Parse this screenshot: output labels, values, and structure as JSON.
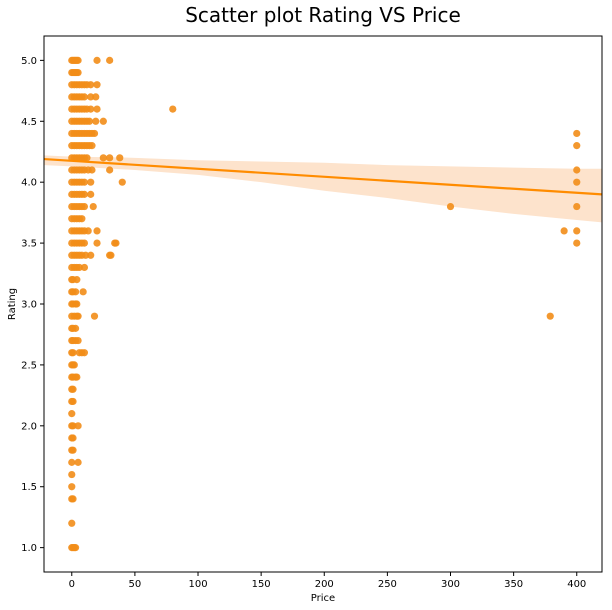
{
  "chart_data": {
    "type": "scatter",
    "title": "Scatter plot Rating VS Price",
    "xlabel": "Price",
    "ylabel": "Rating",
    "xlim": [
      -22,
      420
    ],
    "ylim": [
      0.8,
      5.2
    ],
    "xticks": [
      0,
      50,
      100,
      150,
      200,
      250,
      300,
      350,
      400
    ],
    "yticks": [
      1.0,
      1.5,
      2.0,
      2.5,
      3.0,
      3.5,
      4.0,
      4.5,
      5.0
    ],
    "grid": false,
    "colors": {
      "points": "#f28d18",
      "line": "#ff8c00",
      "band": "#fde3cc"
    },
    "regression": {
      "x": [
        -22,
        420
      ],
      "y": [
        4.19,
        3.9
      ]
    },
    "confidence_band": {
      "x": [
        -22,
        0,
        50,
        100,
        150,
        200,
        250,
        300,
        350,
        400,
        420
      ],
      "lower": [
        4.14,
        4.13,
        4.1,
        4.06,
        4.0,
        3.93,
        3.87,
        3.8,
        3.74,
        3.69,
        3.67
      ],
      "upper": [
        4.22,
        4.21,
        4.2,
        4.18,
        4.17,
        4.16,
        4.14,
        4.13,
        4.12,
        4.11,
        4.11
      ]
    },
    "series": [
      {
        "points": [
          [
            0,
            5.0
          ],
          [
            1,
            5.0
          ],
          [
            2,
            5.0
          ],
          [
            3,
            5.0
          ],
          [
            4,
            5.0
          ],
          [
            5,
            5.0
          ],
          [
            20,
            5.0
          ],
          [
            30,
            5.0
          ],
          [
            0,
            4.9
          ],
          [
            1,
            4.9
          ],
          [
            2,
            4.9
          ],
          [
            3,
            4.9
          ],
          [
            4,
            4.9
          ],
          [
            5,
            4.9
          ],
          [
            0,
            4.8
          ],
          [
            2,
            4.8
          ],
          [
            4,
            4.8
          ],
          [
            6,
            4.8
          ],
          [
            8,
            4.8
          ],
          [
            10,
            4.8
          ],
          [
            12,
            4.8
          ],
          [
            15,
            4.8
          ],
          [
            20,
            4.8
          ],
          [
            0,
            4.7
          ],
          [
            2,
            4.7
          ],
          [
            4,
            4.7
          ],
          [
            6,
            4.7
          ],
          [
            8,
            4.7
          ],
          [
            10,
            4.7
          ],
          [
            15,
            4.7
          ],
          [
            19,
            4.7
          ],
          [
            0,
            4.6
          ],
          [
            2,
            4.6
          ],
          [
            4,
            4.6
          ],
          [
            6,
            4.6
          ],
          [
            8,
            4.6
          ],
          [
            10,
            4.6
          ],
          [
            12,
            4.6
          ],
          [
            15,
            4.6
          ],
          [
            20,
            4.6
          ],
          [
            80,
            4.6
          ],
          [
            0,
            4.5
          ],
          [
            2,
            4.5
          ],
          [
            4,
            4.5
          ],
          [
            6,
            4.5
          ],
          [
            8,
            4.5
          ],
          [
            10,
            4.5
          ],
          [
            12,
            4.5
          ],
          [
            14,
            4.5
          ],
          [
            19,
            4.5
          ],
          [
            25,
            4.5
          ],
          [
            0,
            4.4
          ],
          [
            2,
            4.4
          ],
          [
            4,
            4.4
          ],
          [
            6,
            4.4
          ],
          [
            8,
            4.4
          ],
          [
            10,
            4.4
          ],
          [
            12,
            4.4
          ],
          [
            14,
            4.4
          ],
          [
            16,
            4.4
          ],
          [
            18,
            4.4
          ],
          [
            0,
            4.3
          ],
          [
            2,
            4.3
          ],
          [
            4,
            4.3
          ],
          [
            6,
            4.3
          ],
          [
            8,
            4.3
          ],
          [
            10,
            4.3
          ],
          [
            12,
            4.3
          ],
          [
            14,
            4.3
          ],
          [
            16,
            4.3
          ],
          [
            0,
            4.2
          ],
          [
            2,
            4.2
          ],
          [
            4,
            4.2
          ],
          [
            6,
            4.2
          ],
          [
            8,
            4.2
          ],
          [
            10,
            4.2
          ],
          [
            12,
            4.2
          ],
          [
            25,
            4.2
          ],
          [
            30,
            4.2
          ],
          [
            38,
            4.2
          ],
          [
            0,
            4.1
          ],
          [
            2,
            4.1
          ],
          [
            4,
            4.1
          ],
          [
            6,
            4.1
          ],
          [
            8,
            4.1
          ],
          [
            10,
            4.1
          ],
          [
            13,
            4.1
          ],
          [
            16,
            4.1
          ],
          [
            30,
            4.1
          ],
          [
            0,
            4.0
          ],
          [
            2,
            4.0
          ],
          [
            4,
            4.0
          ],
          [
            6,
            4.0
          ],
          [
            8,
            4.0
          ],
          [
            10,
            4.0
          ],
          [
            15,
            4.0
          ],
          [
            40,
            4.0
          ],
          [
            0,
            3.9
          ],
          [
            2,
            3.9
          ],
          [
            4,
            3.9
          ],
          [
            6,
            3.9
          ],
          [
            8,
            3.9
          ],
          [
            10,
            3.9
          ],
          [
            15,
            3.9
          ],
          [
            0,
            3.8
          ],
          [
            2,
            3.8
          ],
          [
            4,
            3.8
          ],
          [
            6,
            3.8
          ],
          [
            8,
            3.8
          ],
          [
            10,
            3.8
          ],
          [
            17,
            3.8
          ],
          [
            300,
            3.8
          ],
          [
            0,
            3.7
          ],
          [
            2,
            3.7
          ],
          [
            4,
            3.7
          ],
          [
            6,
            3.7
          ],
          [
            8,
            3.7
          ],
          [
            0,
            3.6
          ],
          [
            2,
            3.6
          ],
          [
            4,
            3.6
          ],
          [
            6,
            3.6
          ],
          [
            8,
            3.6
          ],
          [
            10,
            3.6
          ],
          [
            13,
            3.6
          ],
          [
            20,
            3.6
          ],
          [
            390,
            3.6
          ],
          [
            0,
            3.5
          ],
          [
            2,
            3.5
          ],
          [
            4,
            3.5
          ],
          [
            6,
            3.5
          ],
          [
            8,
            3.5
          ],
          [
            10,
            3.5
          ],
          [
            20,
            3.5
          ],
          [
            34,
            3.5
          ],
          [
            35,
            3.5
          ],
          [
            0,
            3.4
          ],
          [
            2,
            3.4
          ],
          [
            4,
            3.4
          ],
          [
            6,
            3.4
          ],
          [
            8,
            3.4
          ],
          [
            11,
            3.4
          ],
          [
            15,
            3.4
          ],
          [
            30,
            3.4
          ],
          [
            31,
            3.4
          ],
          [
            0,
            3.3
          ],
          [
            2,
            3.3
          ],
          [
            4,
            3.3
          ],
          [
            6,
            3.3
          ],
          [
            10,
            3.3
          ],
          [
            0,
            3.2
          ],
          [
            1,
            3.2
          ],
          [
            4,
            3.2
          ],
          [
            0,
            3.1
          ],
          [
            1,
            3.1
          ],
          [
            3,
            3.1
          ],
          [
            9,
            3.1
          ],
          [
            0,
            3.0
          ],
          [
            1,
            3.0
          ],
          [
            3,
            3.0
          ],
          [
            4,
            3.0
          ],
          [
            0,
            2.9
          ],
          [
            2,
            2.9
          ],
          [
            4,
            2.9
          ],
          [
            5,
            2.9
          ],
          [
            18,
            2.9
          ],
          [
            379,
            2.9
          ],
          [
            0,
            2.8
          ],
          [
            1,
            2.8
          ],
          [
            3,
            2.8
          ],
          [
            0,
            2.7
          ],
          [
            1,
            2.7
          ],
          [
            3,
            2.7
          ],
          [
            5,
            2.7
          ],
          [
            0,
            2.6
          ],
          [
            1,
            2.6
          ],
          [
            6,
            2.6
          ],
          [
            8,
            2.6
          ],
          [
            10,
            2.6
          ],
          [
            0,
            2.5
          ],
          [
            1,
            2.5
          ],
          [
            2,
            2.5
          ],
          [
            0,
            2.4
          ],
          [
            1,
            2.4
          ],
          [
            3,
            2.4
          ],
          [
            4,
            2.4
          ],
          [
            0,
            2.3
          ],
          [
            1,
            2.3
          ],
          [
            0,
            2.2
          ],
          [
            1,
            2.2
          ],
          [
            0,
            2.1
          ],
          [
            0,
            2.0
          ],
          [
            1,
            2.0
          ],
          [
            5,
            2.0
          ],
          [
            0,
            1.9
          ],
          [
            1,
            1.9
          ],
          [
            0,
            1.8
          ],
          [
            1,
            1.8
          ],
          [
            0,
            1.7
          ],
          [
            5,
            1.7
          ],
          [
            0,
            1.6
          ],
          [
            0,
            1.5
          ],
          [
            0,
            1.4
          ],
          [
            1,
            1.4
          ],
          [
            0,
            1.2
          ],
          [
            0,
            1.0
          ],
          [
            1,
            1.0
          ],
          [
            2,
            1.0
          ],
          [
            3,
            1.0
          ],
          [
            400,
            4.4
          ],
          [
            400,
            4.3
          ],
          [
            400,
            4.1
          ],
          [
            400,
            4.0
          ],
          [
            400,
            3.8
          ],
          [
            400,
            3.6
          ],
          [
            400,
            3.5
          ]
        ]
      }
    ]
  }
}
